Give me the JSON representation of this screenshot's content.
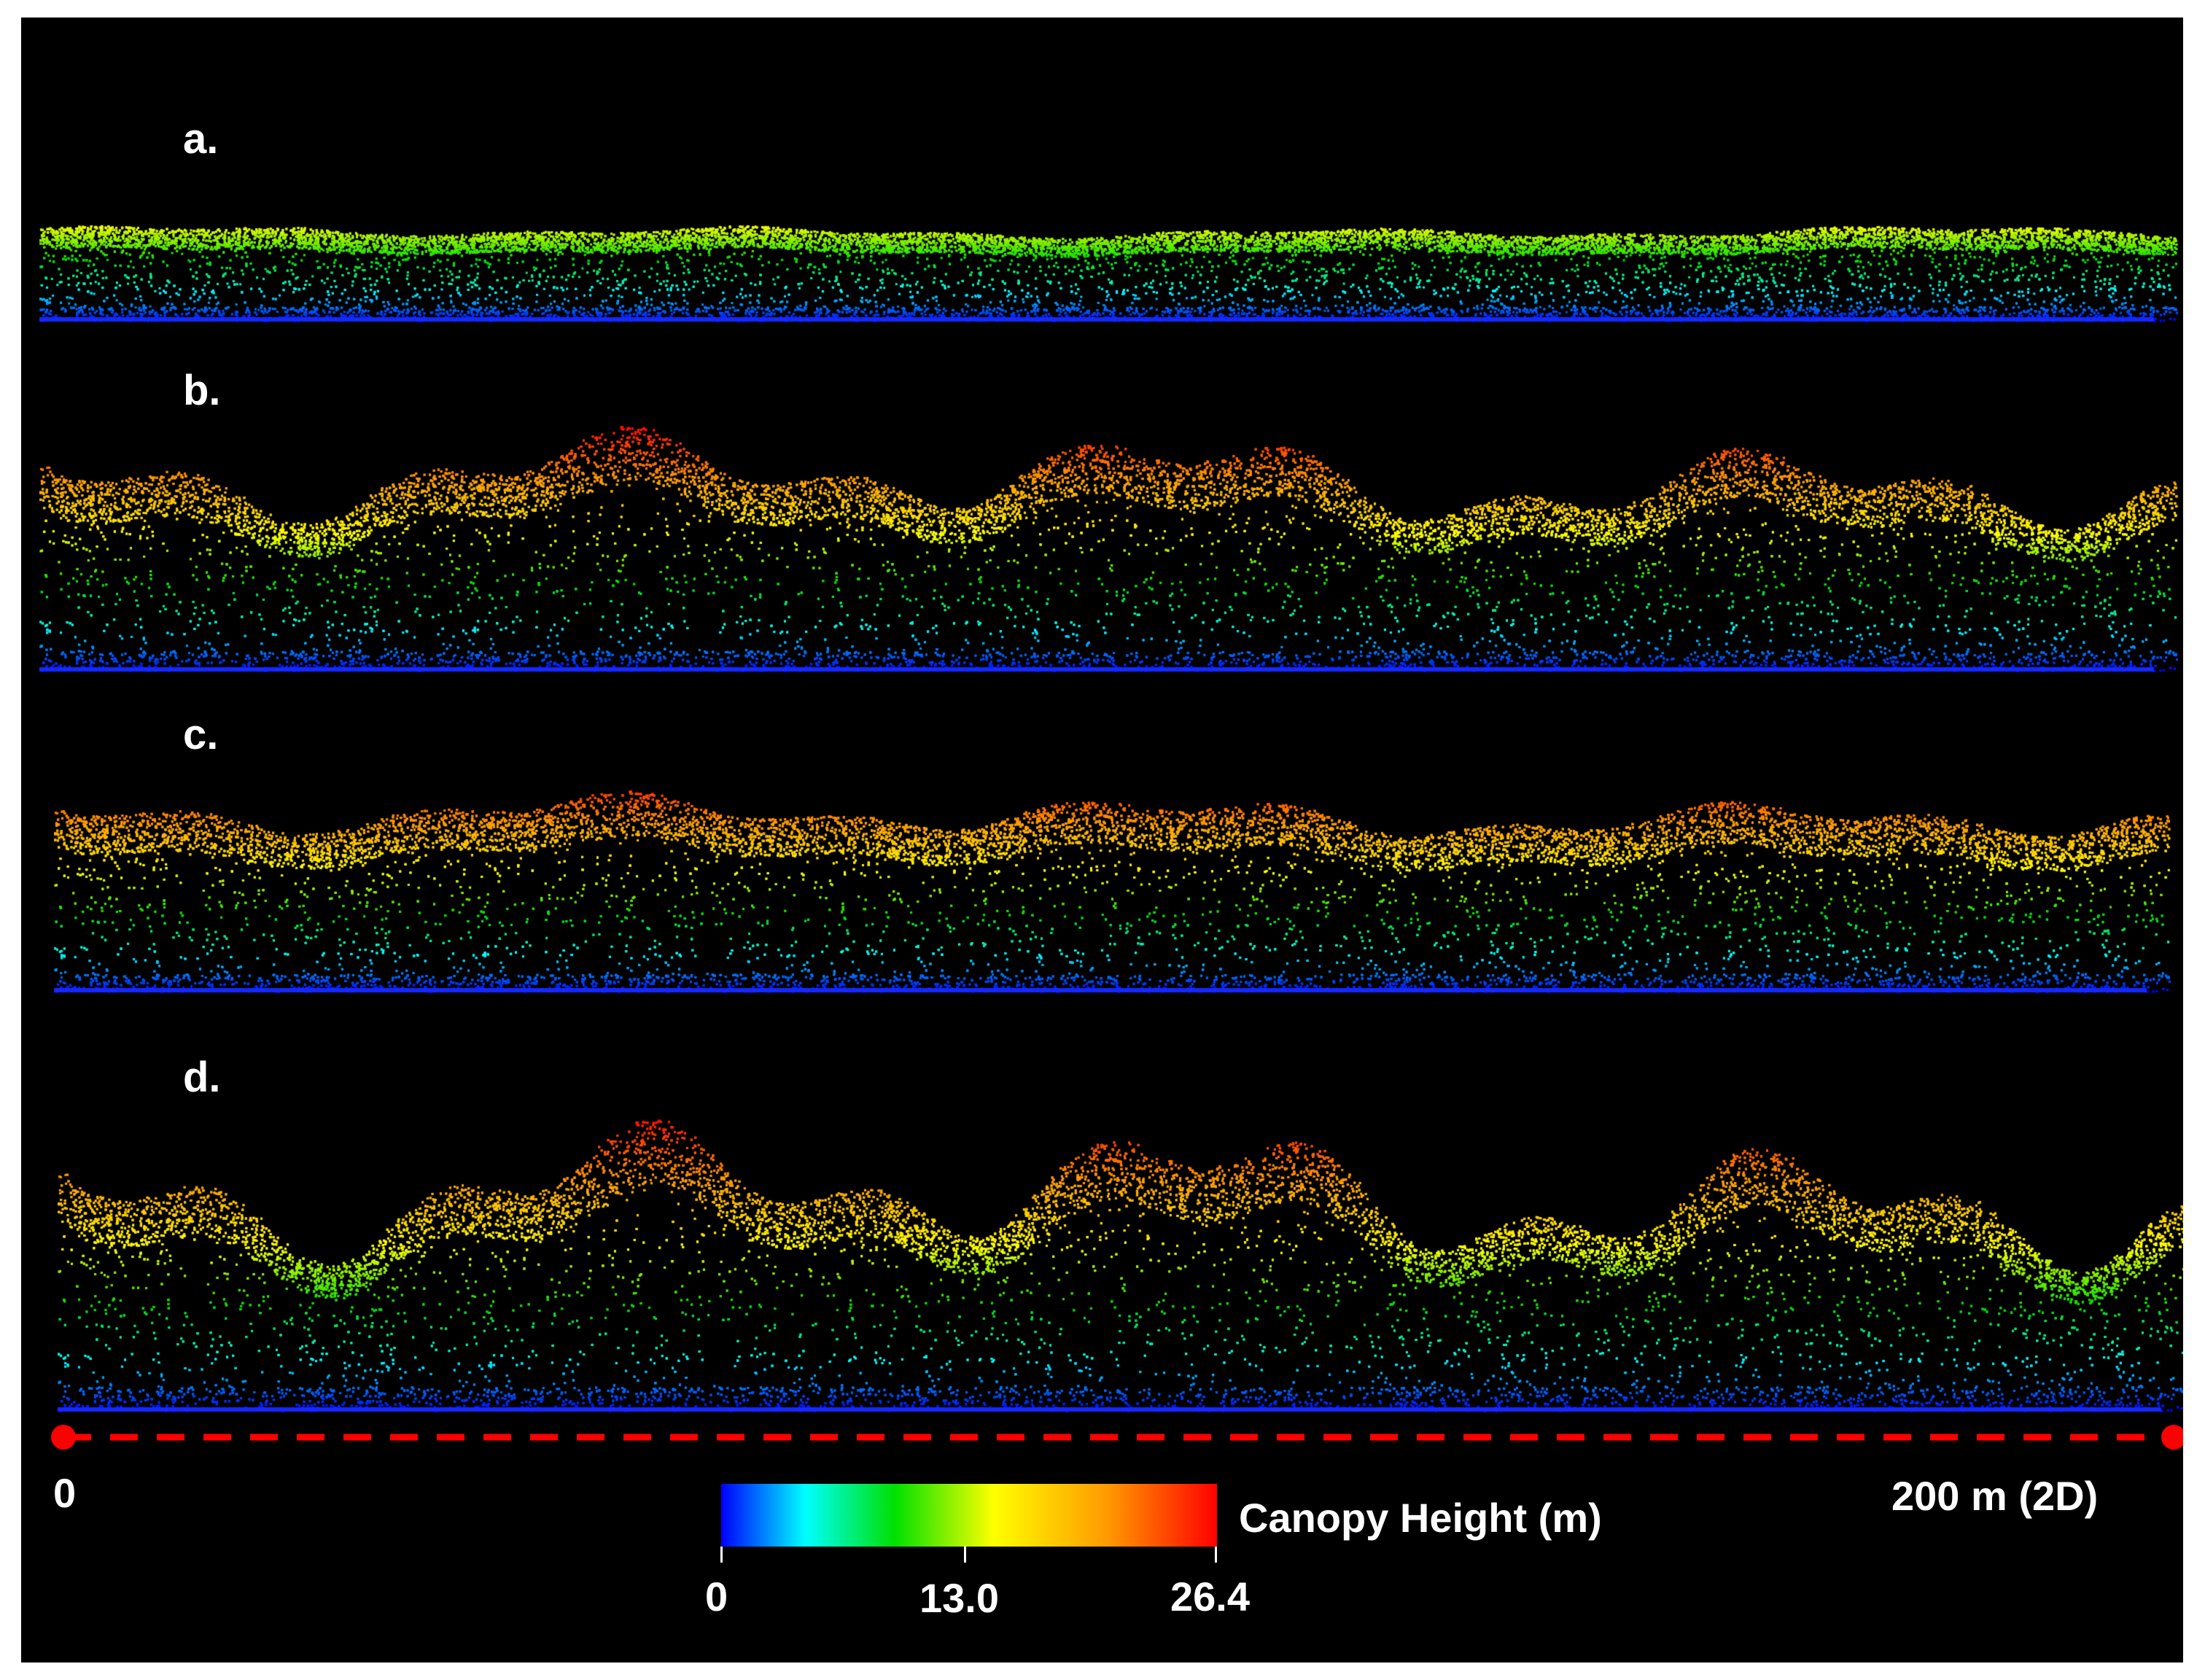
{
  "panels": [
    {
      "label": "a.",
      "max_height_fraction": 0.55,
      "variability": 0.15
    },
    {
      "label": "b.",
      "max_height_fraction": 1.0,
      "variability": 0.45
    },
    {
      "label": "c.",
      "max_height_fraction": 0.92,
      "variability": 0.25
    },
    {
      "label": "d.",
      "max_height_fraction": 1.0,
      "variability": 0.55
    }
  ],
  "transect": {
    "start_label": "0",
    "end_label": "200 m (2D)",
    "color": "#ff0000"
  },
  "colorbar": {
    "title": "Canopy Height (m)",
    "min_label": "0",
    "mid_label": "13.0",
    "max_label": "26.4",
    "colors": [
      "#0000ff",
      "#00ffff",
      "#00e000",
      "#ffff00",
      "#ff9900",
      "#ff0000"
    ]
  }
}
